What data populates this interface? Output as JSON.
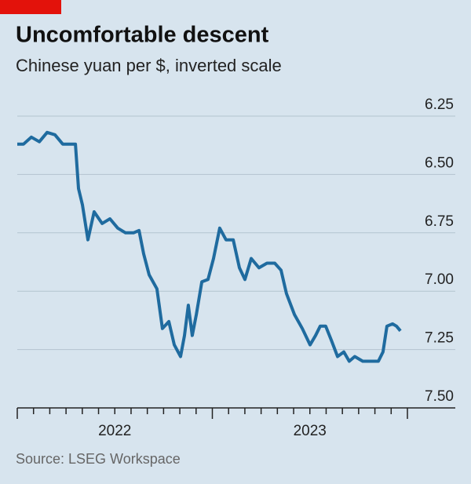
{
  "chart_data": {
    "type": "line",
    "title": "Uncomfortable descent",
    "subtitle": "Chinese yuan per $, inverted scale",
    "source": "Source: LSEG Workspace",
    "x": [
      2022.0,
      2022.032,
      2022.072,
      2022.113,
      2022.153,
      2022.193,
      2022.233,
      2022.274,
      2022.298,
      2022.314,
      2022.334,
      2022.362,
      2022.394,
      2022.435,
      2022.475,
      2022.515,
      2022.555,
      2022.596,
      2022.624,
      2022.648,
      2022.676,
      2022.716,
      2022.744,
      2022.777,
      2022.805,
      2022.837,
      2022.857,
      2022.877,
      2022.897,
      2022.918,
      2022.946,
      2022.978,
      2023.006,
      2023.038,
      2023.07,
      2023.107,
      2023.139,
      2023.167,
      2023.199,
      2023.239,
      2023.28,
      2023.32,
      2023.352,
      2023.38,
      2023.421,
      2023.461,
      2023.501,
      2023.529,
      2023.553,
      2023.581,
      2023.61,
      2023.642,
      2023.674,
      2023.702,
      2023.73,
      2023.771,
      2023.811,
      2023.851,
      2023.875,
      2023.895,
      2023.924,
      2023.944,
      2023.964
    ],
    "series": [
      {
        "name": "Chinese yuan per $",
        "color": "#1f6b9f",
        "values": [
          6.37,
          6.37,
          6.34,
          6.36,
          6.32,
          6.33,
          6.37,
          6.37,
          6.37,
          6.56,
          6.63,
          6.78,
          6.66,
          6.71,
          6.69,
          6.73,
          6.75,
          6.75,
          6.74,
          6.84,
          6.93,
          6.99,
          7.16,
          7.13,
          7.23,
          7.28,
          7.19,
          7.06,
          7.19,
          7.1,
          6.96,
          6.95,
          6.86,
          6.73,
          6.78,
          6.78,
          6.9,
          6.95,
          6.86,
          6.9,
          6.88,
          6.88,
          6.91,
          7.01,
          7.1,
          7.16,
          7.23,
          7.19,
          7.15,
          7.15,
          7.21,
          7.28,
          7.26,
          7.3,
          7.28,
          7.3,
          7.3,
          7.3,
          7.26,
          7.15,
          7.14,
          7.15,
          7.17
        ]
      }
    ],
    "xlim": [
      2022,
      2024
    ],
    "xticks": [
      {
        "value": 2022.5,
        "label": "2022"
      },
      {
        "value": 2023.5,
        "label": "2023"
      }
    ],
    "ylim": [
      6.25,
      7.5
    ],
    "yticks": [
      {
        "value": 6.25,
        "label": "6.25"
      },
      {
        "value": 6.5,
        "label": "6.50"
      },
      {
        "value": 6.75,
        "label": "6.75"
      },
      {
        "value": 7,
        "label": "7.00"
      },
      {
        "value": 7.25,
        "label": "7.25"
      },
      {
        "value": 7.5,
        "label": "7.50"
      }
    ],
    "inverted": true,
    "grid": true
  }
}
